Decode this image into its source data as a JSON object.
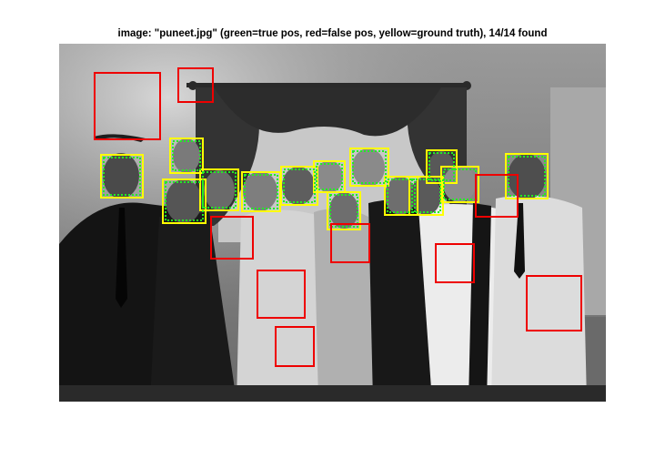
{
  "figure": {
    "title": "image: \"puneet.jpg\" (green=true pos, red=false pos, yellow=ground truth), 14/14 found"
  },
  "colors": {
    "true_pos": "#22ee22",
    "false_pos": "#ee0000",
    "ground_truth": "#ffff00"
  },
  "detections": {
    "ground_truth_count": 14,
    "true_pos_count": 14,
    "false_pos_count": 10
  }
}
